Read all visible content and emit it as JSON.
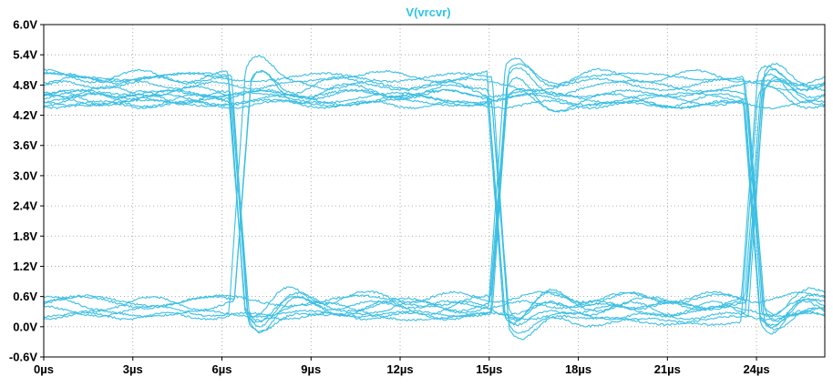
{
  "chart_data": {
    "type": "line",
    "title": "V(vrcvr)",
    "title_color": "#2ec4e8",
    "trace_color": "#3cbfe3",
    "grid": true,
    "grid_style": "dotted",
    "xlim": [
      0,
      26.3
    ],
    "ylim": [
      -0.6,
      6.0
    ],
    "x_unit": "µs",
    "y_unit": "V",
    "xticks": [
      0,
      3,
      6,
      9,
      12,
      15,
      18,
      21,
      24
    ],
    "xtick_labels": [
      "0µs",
      "3µs",
      "6µs",
      "9µs",
      "12µs",
      "15µs",
      "18µs",
      "21µs",
      "24µs"
    ],
    "yticks": [
      6.0,
      5.4,
      4.8,
      4.2,
      3.6,
      3.0,
      2.4,
      1.8,
      1.2,
      0.6,
      0.0,
      -0.6
    ],
    "ytick_labels": [
      "6.0V",
      "5.4V",
      "4.8V",
      "4.2V",
      "3.6V",
      "3.0V",
      "2.4V",
      "1.8V",
      "1.2V",
      "0.6V",
      "0.0V",
      "-0.6V"
    ],
    "signal": {
      "high_level_range": [
        4.4,
        5.0
      ],
      "low_level_range": [
        0.05,
        0.6
      ],
      "transition_times": [
        6.3,
        15.0,
        23.6
      ],
      "crossing_level": 2.4,
      "overshoot_peak": 5.5,
      "undershoot_peak": -0.5,
      "trace_count": 20
    }
  }
}
